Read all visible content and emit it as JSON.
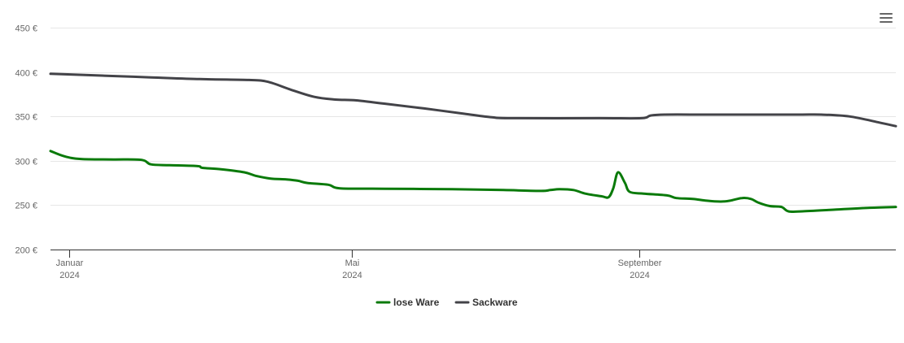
{
  "chart_data": {
    "type": "line",
    "y_ticks": [
      "450 €",
      "400 €",
      "350 €",
      "300 €",
      "250 €",
      "200 €"
    ],
    "x_ticks": [
      {
        "month": "Januar",
        "year": "2024",
        "date": "2024-01-01"
      },
      {
        "month": "Mai",
        "year": "2024",
        "date": "2024-05-01"
      },
      {
        "month": "September",
        "year": "2024",
        "date": "2024-09-01"
      }
    ],
    "xlim": [
      "2023-12-24",
      "2024-12-20"
    ],
    "ylim": [
      200,
      450
    ],
    "grid": true,
    "legend_position": "bottom-center",
    "series": [
      {
        "name": "lose Ware",
        "color": "#0a7a0a",
        "points": [
          [
            "2023-12-24",
            311
          ],
          [
            "2023-12-30",
            305
          ],
          [
            "2024-01-06",
            302
          ],
          [
            "2024-01-20",
            301.5
          ],
          [
            "2024-02-01",
            301
          ],
          [
            "2024-02-05",
            296
          ],
          [
            "2024-02-13",
            295
          ],
          [
            "2024-02-25",
            294
          ],
          [
            "2024-02-27",
            292
          ],
          [
            "2024-03-06",
            290.5
          ],
          [
            "2024-03-16",
            287
          ],
          [
            "2024-03-21",
            283
          ],
          [
            "2024-03-27",
            280
          ],
          [
            "2024-04-03",
            279
          ],
          [
            "2024-04-08",
            277.5
          ],
          [
            "2024-04-12",
            275
          ],
          [
            "2024-04-21",
            273
          ],
          [
            "2024-04-26",
            269
          ],
          [
            "2024-05-15",
            268.5
          ],
          [
            "2024-06-13",
            268
          ],
          [
            "2024-07-05",
            267
          ],
          [
            "2024-07-21",
            266
          ],
          [
            "2024-07-25",
            267
          ],
          [
            "2024-07-29",
            268
          ],
          [
            "2024-08-04",
            267
          ],
          [
            "2024-08-09",
            263
          ],
          [
            "2024-08-16",
            260
          ],
          [
            "2024-08-19",
            259
          ],
          [
            "2024-08-21",
            269
          ],
          [
            "2024-08-23",
            287
          ],
          [
            "2024-08-26",
            275
          ],
          [
            "2024-08-28",
            265
          ],
          [
            "2024-09-03",
            263
          ],
          [
            "2024-09-13",
            261
          ],
          [
            "2024-09-17",
            258
          ],
          [
            "2024-09-24",
            257
          ],
          [
            "2024-09-30",
            255
          ],
          [
            "2024-10-06",
            254
          ],
          [
            "2024-10-10",
            255
          ],
          [
            "2024-10-15",
            258
          ],
          [
            "2024-10-19",
            257
          ],
          [
            "2024-10-22",
            253
          ],
          [
            "2024-10-27",
            249
          ],
          [
            "2024-11-01",
            248
          ],
          [
            "2024-11-04",
            243
          ],
          [
            "2024-11-10",
            243
          ],
          [
            "2024-11-24",
            245
          ],
          [
            "2024-12-08",
            247
          ],
          [
            "2024-12-20",
            248
          ]
        ]
      },
      {
        "name": "Sackware",
        "color": "#434348",
        "points": [
          [
            "2023-12-24",
            398
          ],
          [
            "2024-01-15",
            396
          ],
          [
            "2024-02-05",
            394
          ],
          [
            "2024-02-26",
            392
          ],
          [
            "2024-03-18",
            391
          ],
          [
            "2024-03-26",
            389
          ],
          [
            "2024-04-05",
            380
          ],
          [
            "2024-04-15",
            372
          ],
          [
            "2024-04-24",
            369
          ],
          [
            "2024-05-03",
            368
          ],
          [
            "2024-05-16",
            364
          ],
          [
            "2024-06-01",
            359
          ],
          [
            "2024-06-18",
            353
          ],
          [
            "2024-06-30",
            349
          ],
          [
            "2024-07-08",
            348
          ],
          [
            "2024-08-15",
            348
          ],
          [
            "2024-09-02",
            348
          ],
          [
            "2024-09-06",
            351
          ],
          [
            "2024-09-12",
            352
          ],
          [
            "2024-10-01",
            352
          ],
          [
            "2024-10-29",
            352
          ],
          [
            "2024-11-10",
            352
          ],
          [
            "2024-11-18",
            352
          ],
          [
            "2024-11-30",
            350
          ],
          [
            "2024-12-13",
            343
          ],
          [
            "2024-12-20",
            339
          ]
        ]
      }
    ]
  },
  "legend": [
    {
      "label": "lose Ware",
      "color": "#0a7a0a"
    },
    {
      "label": "Sackware",
      "color": "#434348"
    }
  ],
  "menu": {
    "icon": "hamburger-menu-icon"
  }
}
